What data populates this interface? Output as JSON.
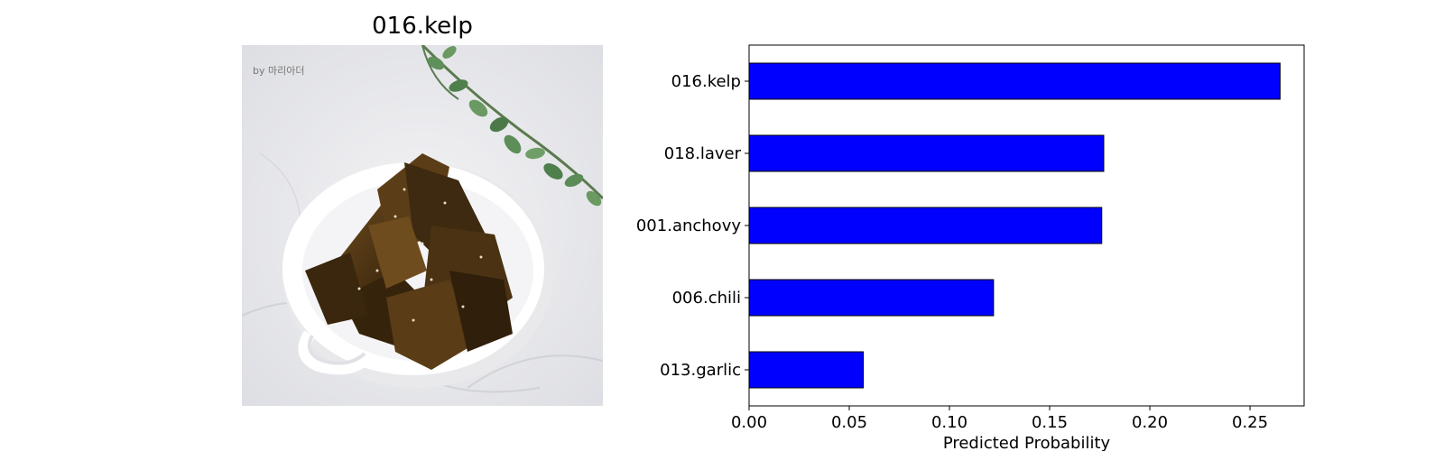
{
  "image_panel": {
    "title": "016.kelp",
    "watermark": "by 마리아더",
    "photo_subject": "kelp-chips-in-white-bowl"
  },
  "chart_data": {
    "type": "bar",
    "orientation": "horizontal",
    "categories": [
      "016.kelp",
      "018.laver",
      "001.anchovy",
      "006.chili",
      "013.garlic"
    ],
    "values": [
      0.265,
      0.177,
      0.176,
      0.122,
      0.057
    ],
    "xlabel": "Predicted Probability",
    "ylabel": "",
    "title": "",
    "xlim": [
      0,
      0.277
    ],
    "xticks": [
      "0.00",
      "0.05",
      "0.10",
      "0.15",
      "0.20",
      "0.25"
    ],
    "grid": false,
    "bar_color": "#0000ff",
    "edge_color": "#000000"
  }
}
